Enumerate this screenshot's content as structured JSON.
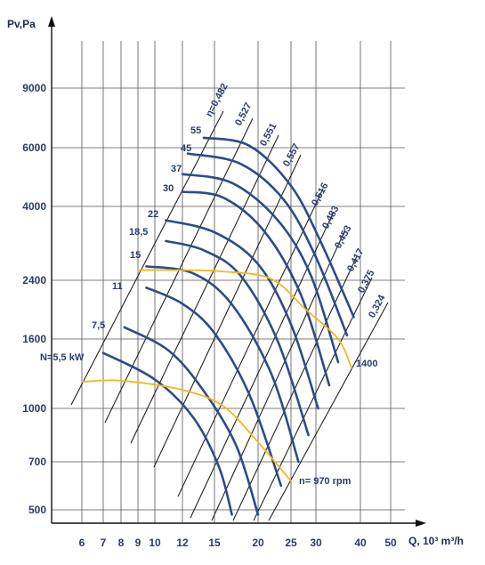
{
  "chart_data": {
    "type": "line",
    "xlabel": "Q, 10³ m³/h",
    "ylabel": "Pv,Pa",
    "x_ticks": [
      6,
      7,
      8,
      9,
      10,
      12,
      15,
      20,
      25,
      30,
      40,
      50
    ],
    "y_ticks": [
      500,
      700,
      1000,
      1600,
      2400,
      4000,
      6000,
      9000
    ],
    "grid": true,
    "series_color": "#2e4a8a",
    "speed_color": "#f2b81e",
    "line_color": "#222222",
    "power_curves": [
      {
        "label": "N=5,5 kW",
        "points": [
          [
            7.0,
            1480
          ],
          [
            10,
            1250
          ],
          [
            13,
            950
          ],
          [
            15.5,
            680
          ],
          [
            17.0,
            480
          ]
        ]
      },
      {
        "label": "7,5",
        "points": [
          [
            8.2,
            1760
          ],
          [
            11,
            1500
          ],
          [
            14,
            1150
          ],
          [
            17.5,
            790
          ],
          [
            20.0,
            480
          ]
        ]
      },
      {
        "label": "11",
        "points": [
          [
            9.5,
            2300
          ],
          [
            12,
            2080
          ],
          [
            15,
            1680
          ],
          [
            19,
            1120
          ],
          [
            23.5,
            600
          ]
        ]
      },
      {
        "label": "15",
        "points": [
          [
            9.5,
            2700
          ],
          [
            13,
            2550
          ],
          [
            17,
            2070
          ],
          [
            22,
            1300
          ],
          [
            26.5,
            700
          ]
        ]
      },
      {
        "label": "18,5",
        "points": [
          [
            10.8,
            3250
          ],
          [
            14,
            3050
          ],
          [
            18,
            2500
          ],
          [
            23,
            1580
          ],
          [
            28.5,
            850
          ]
        ]
      },
      {
        "label": "22",
        "points": [
          [
            10.8,
            3700
          ],
          [
            15,
            3440
          ],
          [
            20,
            2750
          ],
          [
            25,
            1800
          ],
          [
            30.5,
            1000
          ]
        ]
      },
      {
        "label": "30",
        "points": [
          [
            12.0,
            4500
          ],
          [
            16,
            4300
          ],
          [
            21,
            3450
          ],
          [
            27,
            2200
          ],
          [
            33.0,
            1200
          ]
        ]
      },
      {
        "label": "37",
        "points": [
          [
            12.0,
            5100
          ],
          [
            17,
            4800
          ],
          [
            23,
            3700
          ],
          [
            29,
            2500
          ],
          [
            35.0,
            1400
          ]
        ]
      },
      {
        "label": "45",
        "points": [
          [
            12.5,
            5800
          ],
          [
            18,
            5450
          ],
          [
            24,
            4200
          ],
          [
            30,
            2900
          ],
          [
            37.0,
            1650
          ]
        ]
      },
      {
        "label": "55",
        "points": [
          [
            14.0,
            6500
          ],
          [
            19,
            6100
          ],
          [
            25,
            4700
          ],
          [
            31,
            3250
          ],
          [
            38.5,
            1900
          ]
        ]
      }
    ],
    "efficiency_labels": [
      "η=0,482",
      "0,527",
      "0,551",
      "0,557",
      "0,516",
      "0,483",
      "0,453",
      "0,417",
      "0,375",
      "0,324"
    ],
    "speed_curves": [
      {
        "label": "n= 970 rpm",
        "points": [
          [
            6.0,
            1230
          ],
          [
            8,
            1240
          ],
          [
            12,
            1160
          ],
          [
            16,
            1020
          ],
          [
            20,
            810
          ],
          [
            25,
            620
          ]
        ]
      },
      {
        "label": "1400",
        "points": [
          [
            9.0,
            2620
          ],
          [
            12,
            2620
          ],
          [
            16,
            2590
          ],
          [
            22,
            2430
          ],
          [
            28,
            2000
          ],
          [
            35,
            1600
          ],
          [
            38,
            1350
          ]
        ]
      }
    ]
  }
}
